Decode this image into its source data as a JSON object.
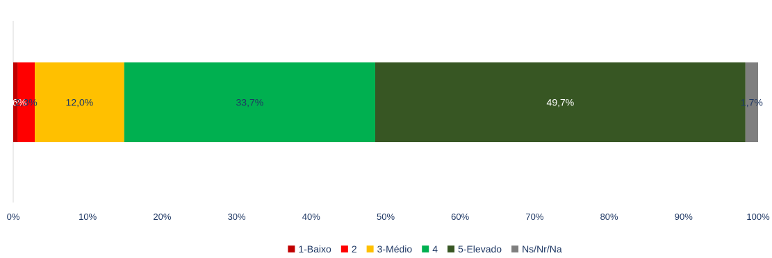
{
  "chart_data": {
    "type": "bar",
    "orientation": "horizontal",
    "stacked": "100%",
    "categories": [
      ""
    ],
    "series": [
      {
        "name": "1-Baixo",
        "values": [
          0.6
        ],
        "color": "#c00000",
        "label": "0,6%",
        "label_color": "#ffffff"
      },
      {
        "name": "2",
        "values": [
          2.3
        ],
        "color": "#ff0000",
        "label": "2,3%",
        "label_color": "#1f3864"
      },
      {
        "name": "3-Médio",
        "values": [
          12.0
        ],
        "color": "#ffc000",
        "label": "12,0%",
        "label_color": "#1f3864"
      },
      {
        "name": "4",
        "values": [
          33.7
        ],
        "color": "#00b050",
        "label": "33,7%",
        "label_color": "#1f3864"
      },
      {
        "name": "5-Elevado",
        "values": [
          49.7
        ],
        "color": "#375623",
        "label": "49,7%",
        "label_color": "#ffffff"
      },
      {
        "name": "Ns/Nr/Na",
        "values": [
          1.7
        ],
        "color": "#7f7f7f",
        "label": "1,7%",
        "label_color": "#1f3864"
      }
    ],
    "xlim": [
      0,
      100
    ],
    "xticks": [
      "0%",
      "10%",
      "20%",
      "30%",
      "40%",
      "50%",
      "60%",
      "70%",
      "80%",
      "90%",
      "100%"
    ],
    "grid": false,
    "legend_position": "bottom",
    "title": "",
    "xlabel": "",
    "ylabel": ""
  }
}
